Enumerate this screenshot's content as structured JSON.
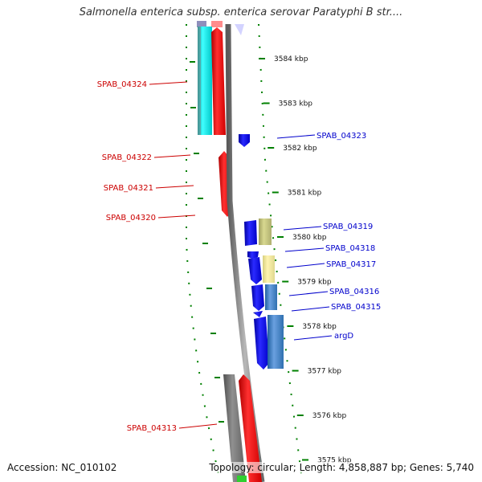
{
  "title": "Salmonella enterica subsp. enterica serovar Paratyphi B str....",
  "footer": {
    "accession": "Accession: NC_010102",
    "topology": "Topology: circular; Length: 4,858,887 bp; Genes: 5,740"
  },
  "scale": {
    "unit": "kbp",
    "ticks": [
      {
        "kbp": 3584,
        "label": "3584 kbp"
      },
      {
        "kbp": 3583,
        "label": "3583 kbp"
      },
      {
        "kbp": 3582,
        "label": "3582 kbp"
      },
      {
        "kbp": 3581,
        "label": "3581 kbp"
      },
      {
        "kbp": 3580,
        "label": "3580 kbp"
      },
      {
        "kbp": 3579,
        "label": "3579 kbp"
      },
      {
        "kbp": 3578,
        "label": "3578 kbp"
      },
      {
        "kbp": 3577,
        "label": "3577 kbp"
      },
      {
        "kbp": 3576,
        "label": "3576 kbp"
      },
      {
        "kbp": 3575,
        "label": "3575 kbp"
      }
    ]
  },
  "genes": [
    {
      "name": "SPAB_04324",
      "side": "left",
      "color": "#cc0000"
    },
    {
      "name": "SPAB_04322",
      "side": "left",
      "color": "#cc0000"
    },
    {
      "name": "SPAB_04321",
      "side": "left",
      "color": "#cc0000"
    },
    {
      "name": "SPAB_04320",
      "side": "left",
      "color": "#cc0000"
    },
    {
      "name": "SPAB_04313",
      "side": "left",
      "color": "#cc0000"
    },
    {
      "name": "SPAB_04323",
      "side": "right",
      "color": "#0000cc"
    },
    {
      "name": "SPAB_04319",
      "side": "right",
      "color": "#0000cc"
    },
    {
      "name": "SPAB_04318",
      "side": "right",
      "color": "#0000cc"
    },
    {
      "name": "SPAB_04317",
      "side": "right",
      "color": "#0000cc"
    },
    {
      "name": "SPAB_04316",
      "side": "right",
      "color": "#0000cc"
    },
    {
      "name": "SPAB_04315",
      "side": "right",
      "color": "#0000cc"
    },
    {
      "name": "argD",
      "side": "right",
      "color": "#0000cc"
    }
  ],
  "colors": {
    "forward_gene": "#ff0000",
    "reverse_gene": "#0000ff",
    "backbone": "#808080",
    "tick": "#008000"
  }
}
